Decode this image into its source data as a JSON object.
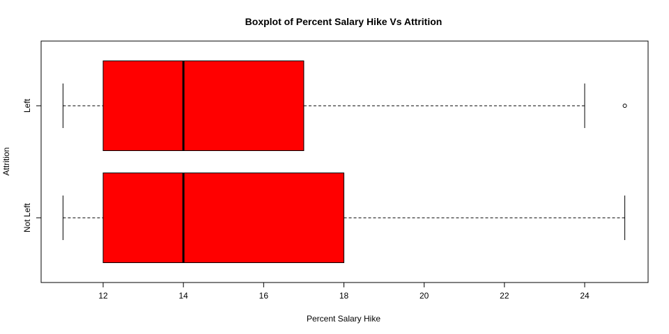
{
  "chart_data": {
    "type": "boxplot",
    "orientation": "horizontal",
    "title": "Boxplot of Percent Salary Hike Vs Attrition",
    "xlabel": "Percent Salary Hike",
    "ylabel": "Attrition",
    "xlim": [
      10.75,
      26
    ],
    "xticks": [
      12,
      14,
      16,
      18,
      20,
      22,
      24
    ],
    "box_color": "#ff0000",
    "groups": [
      {
        "name": "Not Left",
        "whisker_low": 11,
        "q1": 12,
        "median": 14,
        "q3": 18,
        "whisker_high": 25,
        "outliers": []
      },
      {
        "name": "Left",
        "whisker_low": 11,
        "q1": 12,
        "median": 14,
        "q3": 17,
        "whisker_high": 24,
        "outliers": [
          25
        ]
      }
    ]
  }
}
